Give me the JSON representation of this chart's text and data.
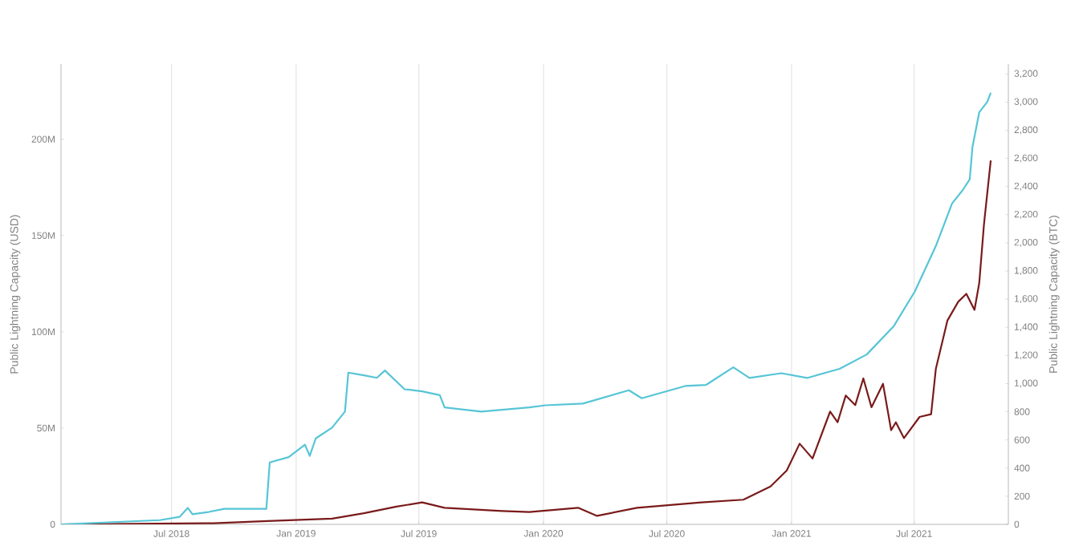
{
  "chart_data": {
    "type": "line",
    "ylabel": "Public Lightning Capacity (USD)",
    "y2label": "Public Lightning Capacity (BTC)",
    "xlim": [
      "2018-01-19",
      "2021-11-17"
    ],
    "xticks": [
      {
        "value": "2018-07-01",
        "label": "Jul 2018"
      },
      {
        "value": "2019-01-01",
        "label": "Jan 2019"
      },
      {
        "value": "2019-07-01",
        "label": "Jul 2019"
      },
      {
        "value": "2020-01-01",
        "label": "Jan 2020"
      },
      {
        "value": "2020-07-01",
        "label": "Jul 2020"
      },
      {
        "value": "2021-01-01",
        "label": "Jan 2021"
      },
      {
        "value": "2021-07-01",
        "label": "Jul 2021"
      }
    ],
    "ylim": [
      0,
      239000000
    ],
    "yticks": [
      0,
      {
        "value": 50000000,
        "label": "50M"
      },
      {
        "value": 100000000,
        "label": "100M"
      },
      {
        "value": 150000000,
        "label": "150M"
      },
      {
        "value": 200000000,
        "label": "200M"
      }
    ],
    "y2lim": [
      0,
      3270
    ],
    "y2ticks": [
      0,
      200,
      400,
      600,
      800,
      {
        "value": 1000,
        "label": "1,000"
      },
      {
        "value": 1200,
        "label": "1,200"
      },
      {
        "value": 1400,
        "label": "1,400"
      },
      {
        "value": 1600,
        "label": "1,600"
      },
      {
        "value": 1800,
        "label": "1,800"
      },
      {
        "value": 2000,
        "label": "2,000"
      },
      {
        "value": 2200,
        "label": "2,200"
      },
      {
        "value": 2400,
        "label": "2,400"
      },
      {
        "value": 2600,
        "label": "2,600"
      },
      {
        "value": 2800,
        "label": "2,800"
      },
      {
        "value": 3000,
        "label": "3,000"
      },
      {
        "value": 3200,
        "label": "3,200"
      }
    ],
    "grid": "x",
    "series": [
      {
        "color": "#56c5d6",
        "axis": "y2",
        "x": [
          "2018-01-19",
          "2018-06-14",
          "2018-07-13",
          "2018-07-25",
          "2018-08-01",
          "2018-08-25",
          "2018-09-17",
          "2018-11-18",
          "2018-11-23",
          "2018-12-21",
          "2019-01-14",
          "2019-01-21",
          "2019-01-30",
          "2019-02-23",
          "2019-03-14",
          "2019-03-19",
          "2019-04-11",
          "2019-04-30",
          "2019-05-12",
          "2019-06-10",
          "2019-07-06",
          "2019-08-01",
          "2019-08-08",
          "2019-10-01",
          "2019-12-11",
          "2020-01-04",
          "2020-02-28",
          "2020-05-06",
          "2020-05-25",
          "2020-07-28",
          "2020-08-28",
          "2020-10-07",
          "2020-10-31",
          "2020-12-17",
          "2021-01-24",
          "2021-03-13",
          "2021-04-22",
          "2021-06-01",
          "2021-07-02",
          "2021-08-02",
          "2021-08-26",
          "2021-09-11",
          "2021-09-21",
          "2021-09-25",
          "2021-10-05",
          "2021-10-17",
          "2021-10-22"
        ],
        "values": [
          0,
          30,
          53,
          117,
          72,
          88,
          110,
          110,
          440,
          478,
          566,
          486,
          611,
          687,
          801,
          1078,
          1059,
          1041,
          1093,
          960,
          945,
          918,
          831,
          801,
          831,
          846,
          858,
          953,
          896,
          983,
          991,
          1116,
          1040,
          1074,
          1040,
          1105,
          1207,
          1409,
          1655,
          1978,
          2281,
          2377,
          2452,
          2680,
          2927,
          3003,
          3067
        ]
      },
      {
        "color": "#7a1a1a",
        "x": [
          "2018-01-19",
          "2018-09-01",
          "2018-11-20",
          "2019-02-23",
          "2019-04-11",
          "2019-05-29",
          "2019-07-06",
          "2019-08-08",
          "2019-11-01",
          "2019-12-11",
          "2020-02-21",
          "2020-03-20",
          "2020-05-18",
          "2020-08-21",
          "2020-10-22",
          "2020-12-01",
          "2020-12-25",
          "2021-01-13",
          "2021-02-01",
          "2021-02-27",
          "2021-03-10",
          "2021-03-22",
          "2021-04-05",
          "2021-04-17",
          "2021-04-29",
          "2021-05-16",
          "2021-05-28",
          "2021-06-04",
          "2021-06-16",
          "2021-07-09",
          "2021-07-26",
          "2021-08-02",
          "2021-08-19",
          "2021-09-04",
          "2021-09-16",
          "2021-09-28",
          "2021-10-05",
          "2021-10-12",
          "2021-10-22"
        ],
        "values": [
          0,
          600000,
          1700000,
          3000000,
          5800000,
          9200000,
          11400000,
          8600000,
          6900000,
          6400000,
          8600000,
          4400000,
          8600000,
          11400000,
          12800000,
          19700000,
          28000000,
          41900000,
          34200000,
          58600000,
          53000000,
          66900000,
          61900000,
          75800000,
          60800000,
          73000000,
          48900000,
          53000000,
          44800000,
          55800000,
          57200000,
          80800000,
          105800000,
          115600000,
          119700000,
          111400000,
          125200000,
          155800000,
          189000000
        ]
      }
    ]
  }
}
